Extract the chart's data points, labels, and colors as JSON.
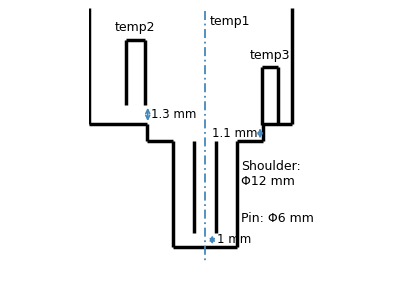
{
  "fig_width": 4.1,
  "fig_height": 2.84,
  "dpi": 100,
  "bg_color": "#ffffff",
  "line_color": "#000000",
  "blue_color": "#4488BB",
  "line_width": 2.5,
  "labels": {
    "temp1": "temp1",
    "temp2": "temp2",
    "temp3": "temp3",
    "dim_13": "1.3 mm",
    "dim_11": "1.1 mm",
    "dim_1": "1 mm",
    "shoulder": "Shoulder:\nΦ12 mm",
    "pin": "Pin: Φ6 mm"
  },
  "fontsize": 9,
  "xlim": [
    -1,
    15
  ],
  "ylim": [
    -11,
    8.5
  ]
}
